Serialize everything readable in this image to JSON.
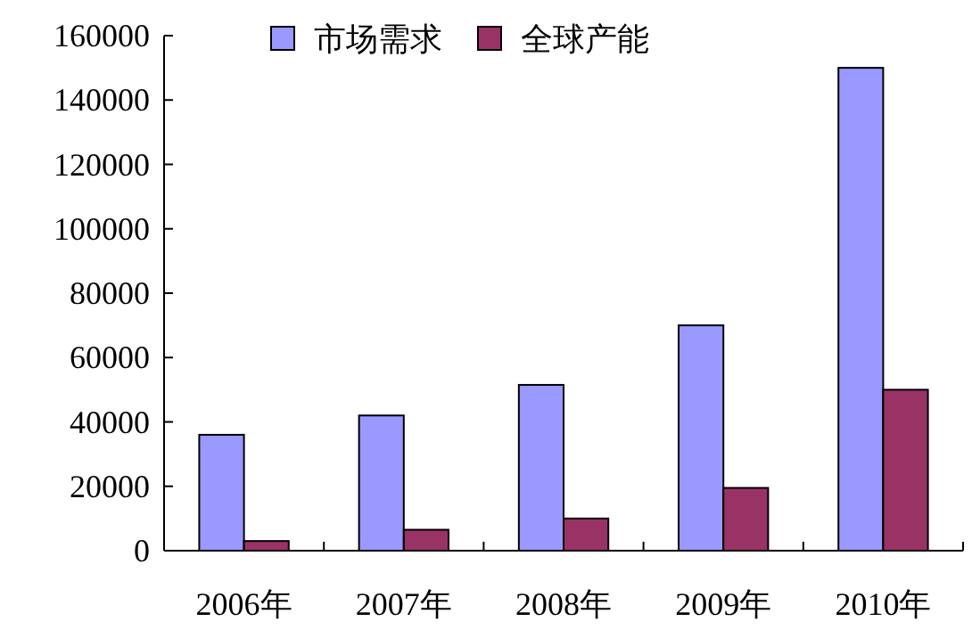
{
  "chart_data": {
    "type": "bar",
    "categories": [
      "2006年",
      "2007年",
      "2008年",
      "2009年",
      "2010年"
    ],
    "series": [
      {
        "name": "市场需求",
        "color": "#9999ff",
        "values": [
          36000,
          42000,
          51500,
          70000,
          150000
        ]
      },
      {
        "name": "全球产能",
        "color": "#993366",
        "values": [
          3000,
          6500,
          10000,
          19500,
          50000
        ]
      }
    ],
    "ylim": [
      0,
      160000
    ],
    "yticks": [
      0,
      20000,
      40000,
      60000,
      80000,
      100000,
      120000,
      140000,
      160000
    ],
    "grid": false,
    "legend": "top"
  }
}
